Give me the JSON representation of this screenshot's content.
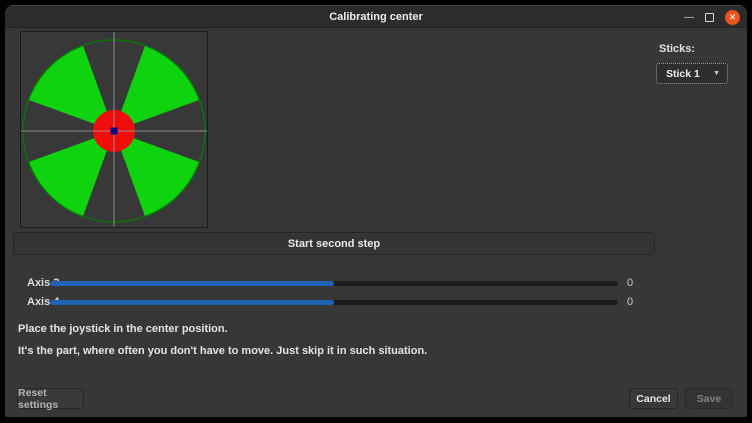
{
  "window": {
    "title": "Calibrating center",
    "controls": {
      "minimize": "—",
      "maximize": "",
      "close": "✕"
    }
  },
  "sticks": {
    "label": "Sticks:",
    "selected_option": "Stick 1",
    "arrow": "▼"
  },
  "joystick_display": {
    "description": "joystick center calibration visualization",
    "colors": {
      "wedge_green": "#0fd30f",
      "wedge_edge": "#0a2a0a",
      "circle_outline": "#0c720c",
      "center_red": "#f20d0d",
      "center_ring_blue": "#2b2bd5",
      "marker_blue": "#000085",
      "marker_border": "#000048",
      "crosshair_gray": "#a0a0a0",
      "panel_bg": "#383838"
    }
  },
  "actions": {
    "start_second_step": "Start second step",
    "reset_settings": "Reset settings",
    "cancel": "Cancel",
    "save": "Save"
  },
  "axes": [
    {
      "label": "Axis 3",
      "value": "0",
      "fill_percent": 50
    },
    {
      "label": "Axis 4",
      "value": "0",
      "fill_percent": 50
    }
  ],
  "instructions": [
    "Place the joystick in the center position.",
    "It's the part, where often you don't have to move. Just skip it in such situation."
  ],
  "colors": {
    "titlebar_bg": "#2c2c2c",
    "window_bg": "#373737",
    "slider_blue": "#2063b4",
    "close_button_orange": "#e95420"
  }
}
